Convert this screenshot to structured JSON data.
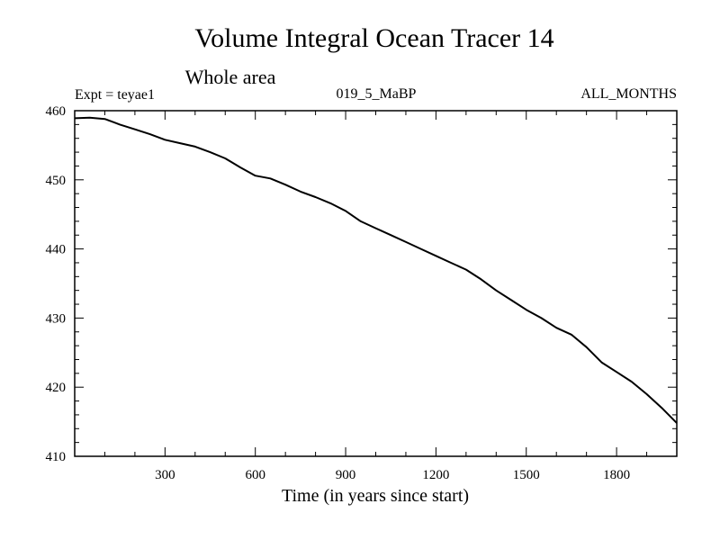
{
  "chart_data": {
    "type": "line",
    "title": "Volume Integral Ocean Tracer 14",
    "subtitle": "Whole area",
    "annotations": {
      "left": "Expt = teyae1",
      "center": "019_5_MaBP",
      "right": "ALL_MONTHS"
    },
    "xlabel": "Time (in years since start)",
    "ylabel": "",
    "xlim": [
      0,
      2000
    ],
    "ylim": [
      410,
      460
    ],
    "x_ticks": [
      300,
      600,
      900,
      1200,
      1500,
      1800
    ],
    "x_tick_labels": [
      "300",
      "600",
      "900",
      "1200",
      "1500",
      "1800"
    ],
    "y_ticks": [
      410,
      420,
      430,
      440,
      450,
      460
    ],
    "y_tick_labels": [
      "410",
      "420",
      "430",
      "440",
      "450",
      "460"
    ],
    "grid": false,
    "series": [
      {
        "color": "#000000",
        "x": [
          0,
          50,
          100,
          150,
          200,
          250,
          300,
          350,
          400,
          450,
          500,
          550,
          600,
          650,
          700,
          750,
          800,
          850,
          900,
          950,
          1000,
          1050,
          1100,
          1150,
          1200,
          1250,
          1300,
          1350,
          1400,
          1450,
          1500,
          1550,
          1600,
          1650,
          1700,
          1750,
          1800,
          1850,
          1900,
          1950,
          2000
        ],
        "y": [
          458.9,
          459.0,
          458.8,
          458.0,
          457.3,
          456.6,
          455.8,
          455.3,
          454.8,
          454.0,
          453.1,
          451.8,
          450.6,
          450.2,
          449.3,
          448.3,
          447.5,
          446.6,
          445.5,
          444.0,
          443.0,
          442.0,
          441.0,
          440.0,
          439.0,
          438.0,
          437.0,
          435.6,
          434.0,
          432.6,
          431.2,
          430.0,
          428.6,
          427.6,
          425.8,
          423.6,
          422.2,
          420.8,
          419.0,
          417.0,
          414.8
        ]
      }
    ]
  }
}
